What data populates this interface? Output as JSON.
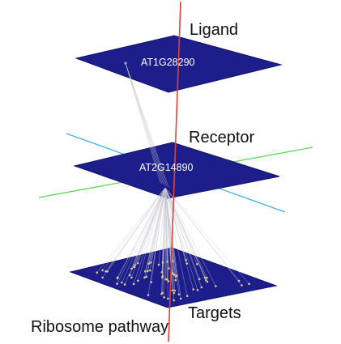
{
  "layers": {
    "ligand": {
      "label": "Ligand",
      "gene": "AT1G28290"
    },
    "receptor": {
      "label": "Receptor",
      "gene": "AT2G14890"
    },
    "targets": {
      "label": "Targets"
    }
  },
  "pathway_label": "Ribosome pathway",
  "colors": {
    "plane": "#1d1d8c",
    "plane_edge": "#14146b",
    "vertical_axis": "#e0403a",
    "axis_green": "#5fd35a",
    "axis_cyan": "#3fb0e8",
    "edge_lines": "#c8c8d0",
    "target_dots": "#d9c98a"
  }
}
